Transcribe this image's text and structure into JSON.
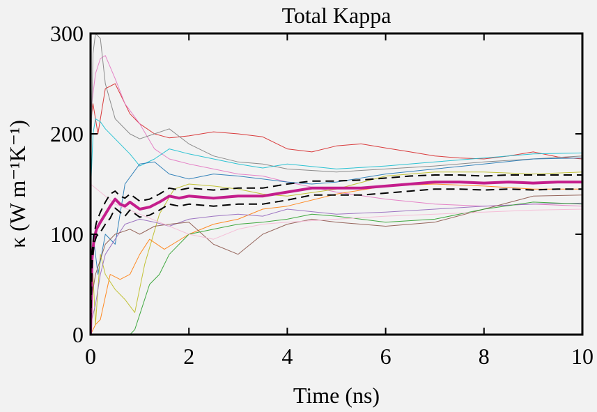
{
  "chart_data": {
    "type": "line",
    "title": "Total Kappa",
    "xlabel": "Time (ns)",
    "ylabel": "κ (W m⁻¹K⁻¹)",
    "xlim": [
      0,
      10
    ],
    "ylim": [
      0,
      300
    ],
    "x_ticks": [
      0,
      2,
      4,
      6,
      8,
      10
    ],
    "y_ticks": [
      0,
      100,
      200,
      300
    ],
    "grid": false,
    "legend": "none",
    "series": [
      {
        "role": "run",
        "color": "#d62728",
        "x": [
          0,
          0.05,
          0.15,
          0.3,
          0.5,
          0.8,
          1.0,
          1.3,
          1.6,
          2.0,
          2.5,
          3.0,
          3.5,
          4.0,
          4.5,
          5.0,
          5.5,
          6.0,
          6.5,
          7.0,
          7.5,
          8.0,
          8.5,
          9.0,
          9.5,
          10.0
        ],
        "y": [
          210,
          230,
          200,
          245,
          250,
          220,
          210,
          200,
          196,
          198,
          202,
          200,
          197,
          185,
          182,
          188,
          190,
          186,
          182,
          178,
          176,
          175,
          178,
          182,
          177,
          175
        ]
      },
      {
        "role": "run",
        "color": "#e377c2",
        "x": [
          0,
          0.05,
          0.1,
          0.2,
          0.3,
          0.5,
          0.7,
          1.0,
          1.3,
          1.6,
          2.0,
          2.5,
          3.0,
          3.5,
          4.0,
          5.0,
          6.0,
          7.0,
          8.0,
          9.0,
          10.0
        ],
        "y": [
          220,
          240,
          260,
          275,
          278,
          255,
          230,
          210,
          185,
          175,
          170,
          165,
          160,
          158,
          152,
          142,
          135,
          130,
          128,
          130,
          128
        ]
      },
      {
        "role": "run",
        "color": "#7f7f7f",
        "x": [
          0,
          0.05,
          0.1,
          0.2,
          0.3,
          0.5,
          0.8,
          1.0,
          1.3,
          1.6,
          2.0,
          2.5,
          3.0,
          3.5,
          4.0,
          5.0,
          6.0,
          7.0,
          8.0,
          9.0,
          10.0
        ],
        "y": [
          160,
          280,
          300,
          295,
          250,
          215,
          200,
          195,
          200,
          205,
          190,
          178,
          172,
          170,
          165,
          162,
          165,
          168,
          172,
          175,
          178
        ]
      },
      {
        "role": "run",
        "color": "#17becf",
        "x": [
          0,
          0.05,
          0.1,
          0.2,
          0.3,
          0.5,
          0.8,
          1.0,
          1.3,
          1.6,
          2.0,
          2.5,
          3.0,
          3.5,
          4.0,
          5.0,
          6.0,
          7.0,
          8.0,
          9.0,
          10.0
        ],
        "y": [
          140,
          200,
          215,
          212,
          205,
          195,
          180,
          168,
          175,
          185,
          180,
          175,
          170,
          166,
          170,
          165,
          168,
          172,
          176,
          180,
          181
        ]
      },
      {
        "role": "run",
        "color": "#1f77b4",
        "x": [
          0,
          0.05,
          0.15,
          0.3,
          0.5,
          0.7,
          1.0,
          1.3,
          1.6,
          2.0,
          2.5,
          3.0,
          3.5,
          4.0,
          4.5,
          5.0,
          6.0,
          7.0,
          8.0,
          9.0,
          10.0
        ],
        "y": [
          20,
          100,
          60,
          100,
          90,
          150,
          170,
          172,
          160,
          155,
          160,
          158,
          155,
          152,
          150,
          152,
          160,
          165,
          170,
          175,
          176
        ]
      },
      {
        "role": "run",
        "color": "#bcbd22",
        "x": [
          0,
          0.05,
          0.1,
          0.2,
          0.3,
          0.5,
          0.7,
          0.9,
          1.1,
          1.4,
          1.7,
          2.0,
          2.5,
          3.0,
          3.5,
          4.0,
          5.0,
          6.0,
          7.0,
          8.0,
          9.0,
          10.0
        ],
        "y": [
          0,
          60,
          10,
          80,
          60,
          45,
          35,
          22,
          70,
          120,
          145,
          150,
          148,
          145,
          140,
          138,
          145,
          158,
          162,
          162,
          160,
          162
        ]
      },
      {
        "role": "run",
        "color": "#ff7f0e",
        "x": [
          0,
          0.1,
          0.2,
          0.4,
          0.6,
          0.8,
          1.0,
          1.2,
          1.5,
          2.0,
          2.5,
          3.0,
          3.5,
          4.0,
          5.0,
          6.0,
          7.0,
          8.0,
          9.0,
          10.0
        ],
        "y": [
          0,
          10,
          15,
          60,
          55,
          60,
          80,
          95,
          85,
          100,
          110,
          115,
          125,
          128,
          140,
          148,
          150,
          148,
          145,
          145
        ]
      },
      {
        "role": "run",
        "color": "#9467bd",
        "x": [
          0,
          0.1,
          0.2,
          0.3,
          0.5,
          0.7,
          1.0,
          1.3,
          1.6,
          2.0,
          2.5,
          3.0,
          3.5,
          4.0,
          5.0,
          6.0,
          7.0,
          8.0,
          9.0,
          10.0
        ],
        "y": [
          10,
          30,
          60,
          80,
          95,
          110,
          115,
          112,
          108,
          115,
          118,
          120,
          118,
          125,
          120,
          122,
          125,
          128,
          130,
          131
        ]
      },
      {
        "role": "run",
        "color": "#8c564b",
        "x": [
          0,
          0.1,
          0.3,
          0.5,
          0.8,
          1.0,
          1.3,
          1.6,
          2.0,
          2.5,
          3.0,
          3.5,
          4.0,
          4.5,
          5.0,
          6.0,
          7.0,
          8.0,
          9.0,
          10.0
        ],
        "y": [
          30,
          60,
          90,
          100,
          105,
          100,
          108,
          110,
          112,
          90,
          80,
          100,
          110,
          115,
          112,
          108,
          112,
          125,
          138,
          139
        ]
      },
      {
        "role": "run",
        "color": "#2ca02c",
        "x": [
          0,
          0.4,
          0.5,
          0.6,
          0.8,
          0.9,
          1.0,
          1.2,
          1.4,
          1.6,
          2.0,
          2.5,
          3.0,
          3.5,
          4.0,
          4.5,
          5.0,
          6.0,
          7.0,
          8.0,
          9.0,
          10.0
        ],
        "y": [
          0,
          0,
          0,
          0,
          0,
          5,
          20,
          50,
          60,
          80,
          100,
          105,
          110,
          112,
          115,
          120,
          118,
          112,
          115,
          125,
          132,
          130
        ]
      },
      {
        "role": "run",
        "color": "#f5b8d4",
        "x": [
          0,
          0.5,
          1.0,
          1.5,
          2.0,
          2.5,
          3.0,
          3.5,
          4.0,
          5.0,
          6.0,
          7.0,
          8.0,
          9.0,
          10.0
        ],
        "y": [
          150,
          130,
          120,
          110,
          100,
          95,
          105,
          110,
          112,
          115,
          118,
          120,
          122,
          124,
          125
        ]
      },
      {
        "role": "mean",
        "color": "#c41e8c",
        "x": [
          0,
          0.03,
          0.07,
          0.12,
          0.2,
          0.3,
          0.4,
          0.5,
          0.6,
          0.7,
          0.8,
          1.0,
          1.2,
          1.4,
          1.6,
          1.8,
          2.0,
          2.5,
          3.0,
          3.5,
          4.0,
          4.5,
          5.0,
          5.5,
          6.0,
          6.5,
          7.0,
          7.5,
          8.0,
          8.5,
          9.0,
          9.5,
          10.0
        ],
        "y": [
          0,
          75,
          95,
          105,
          112,
          120,
          128,
          135,
          130,
          128,
          132,
          125,
          127,
          132,
          138,
          136,
          138,
          136,
          138,
          138,
          142,
          146,
          146,
          146,
          148,
          150,
          152,
          152,
          151,
          152,
          151,
          152,
          152
        ]
      },
      {
        "role": "upper-ci",
        "color": "#000000",
        "x": [
          0,
          0.03,
          0.07,
          0.12,
          0.2,
          0.3,
          0.4,
          0.5,
          0.6,
          0.7,
          0.8,
          1.0,
          1.2,
          1.4,
          1.6,
          1.8,
          2.0,
          2.5,
          3.0,
          3.5,
          4.0,
          4.5,
          5.0,
          5.5,
          6.0,
          6.5,
          7.0,
          7.5,
          8.0,
          8.5,
          9.0,
          9.5,
          10.0
        ],
        "y": [
          0,
          80,
          100,
          112,
          122,
          132,
          140,
          143,
          138,
          136,
          140,
          133,
          135,
          140,
          146,
          144,
          146,
          144,
          146,
          146,
          150,
          153,
          153,
          154,
          156,
          158,
          159,
          159,
          158,
          159,
          159,
          159,
          159
        ]
      },
      {
        "role": "lower-ci",
        "color": "#000000",
        "x": [
          0,
          0.03,
          0.07,
          0.12,
          0.2,
          0.3,
          0.4,
          0.5,
          0.6,
          0.7,
          0.8,
          1.0,
          1.2,
          1.4,
          1.6,
          1.8,
          2.0,
          2.5,
          3.0,
          3.5,
          4.0,
          4.5,
          5.0,
          5.5,
          6.0,
          6.5,
          7.0,
          7.5,
          8.0,
          8.5,
          9.0,
          9.5,
          10.0
        ],
        "y": [
          0,
          70,
          90,
          98,
          102,
          110,
          116,
          126,
          122,
          118,
          124,
          117,
          119,
          124,
          130,
          128,
          130,
          128,
          130,
          130,
          134,
          139,
          139,
          139,
          141,
          143,
          145,
          145,
          144,
          145,
          144,
          145,
          145
        ]
      }
    ]
  }
}
